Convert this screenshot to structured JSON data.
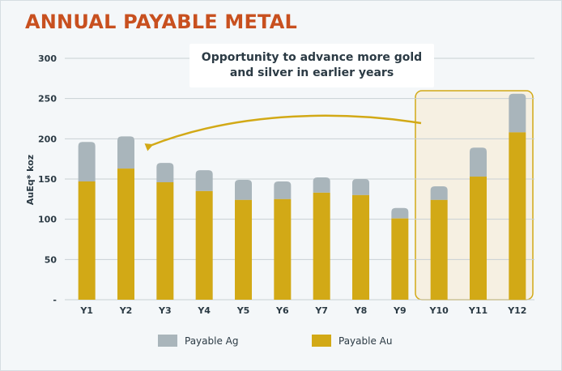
{
  "title": "ANNUAL PAYABLE METAL",
  "callout": "Opportunity to advance more gold and silver in earlier years",
  "legend": {
    "ag_label": "Payable Ag",
    "au_label": "Payable Au"
  },
  "colors": {
    "ag": "#a9b5bb",
    "au": "#d2a916",
    "title": "#c8501f",
    "highlight_fill": "#f6f0e2",
    "highlight_border": "#d2a916",
    "grid": "#c9d0d4",
    "text": "#2b3a44"
  },
  "chart_data": {
    "type": "bar",
    "stacked": true,
    "categories": [
      "Y1",
      "Y2",
      "Y3",
      "Y4",
      "Y5",
      "Y6",
      "Y7",
      "Y8",
      "Y9",
      "Y10",
      "Y11",
      "Y12"
    ],
    "series": [
      {
        "name": "Payable Au",
        "values": [
          147,
          163,
          146,
          135,
          124,
          125,
          133,
          130,
          101,
          124,
          153,
          208
        ]
      },
      {
        "name": "Payable Ag",
        "values": [
          49,
          40,
          24,
          26,
          25,
          22,
          19,
          20,
          13,
          17,
          36,
          48
        ]
      }
    ],
    "ylabel": "AuEq* koz",
    "ylim": [
      0,
      300
    ],
    "yticks": [
      {
        "value": 0,
        "label": "-"
      },
      {
        "value": 50,
        "label": "50"
      },
      {
        "value": 100,
        "label": "100"
      },
      {
        "value": 150,
        "label": "150"
      },
      {
        "value": 200,
        "label": "200"
      },
      {
        "value": 250,
        "label": "250"
      },
      {
        "value": 300,
        "label": "300"
      }
    ],
    "grid": true,
    "legend_position": "bottom",
    "highlighted_categories": [
      "Y10",
      "Y11",
      "Y12"
    ]
  }
}
